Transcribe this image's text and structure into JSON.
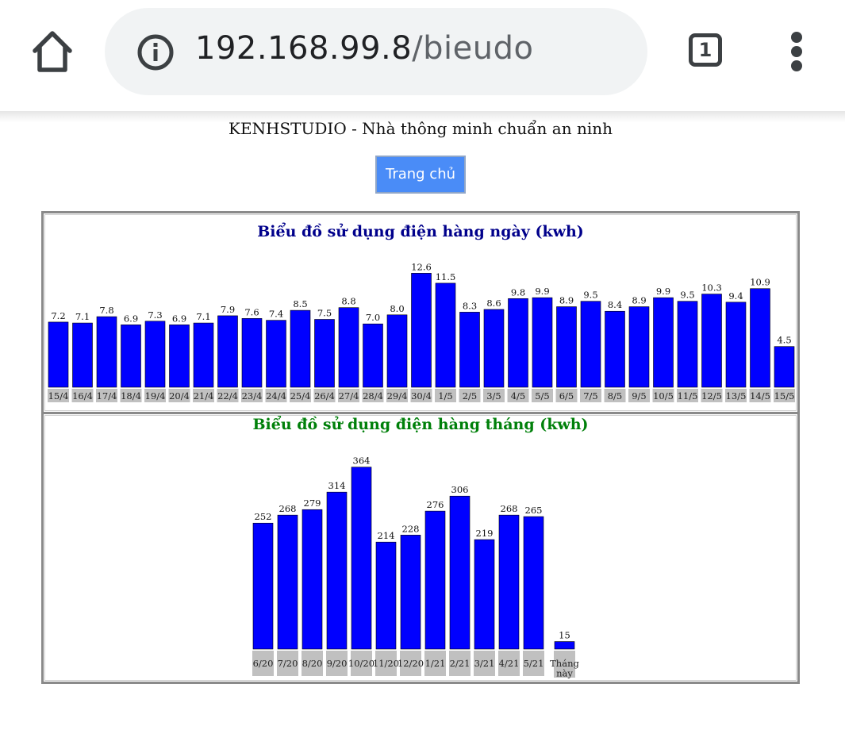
{
  "browser": {
    "url_host": "192.168.99.8",
    "url_path": "/bieudo",
    "tab_count": "1",
    "icons": [
      "home-icon",
      "info-icon",
      "tab-switcher-icon",
      "more-vert-icon"
    ]
  },
  "page": {
    "header": "KENHSTUDIO - Nhà thông minh chuẩn an ninh",
    "home_button": "Trang chủ"
  },
  "colors": {
    "bar": "#0000ff",
    "label_bg": "#c0c0c0",
    "daily_title": "#00008b",
    "monthly_title": "#00800a",
    "button": "#4a8cf7"
  },
  "chart_data": [
    {
      "type": "bar",
      "title": "Biểu đồ sử dụng điện hàng ngày (kwh)",
      "categories": [
        "15/4",
        "16/4",
        "17/4",
        "18/4",
        "19/4",
        "20/4",
        "21/4",
        "22/4",
        "23/4",
        "24/4",
        "25/4",
        "26/4",
        "27/4",
        "28/4",
        "29/4",
        "30/4",
        "1/5",
        "2/5",
        "3/5",
        "4/5",
        "5/5",
        "6/5",
        "7/5",
        "8/5",
        "9/5",
        "10/5",
        "11/5",
        "12/5",
        "13/5",
        "14/5",
        "15/5"
      ],
      "values": [
        7.2,
        7.1,
        7.8,
        6.9,
        7.3,
        6.9,
        7.1,
        7.9,
        7.6,
        7.4,
        8.5,
        7.5,
        8.8,
        7.0,
        8.0,
        12.6,
        11.5,
        8.3,
        8.6,
        9.8,
        9.9,
        8.9,
        9.5,
        8.4,
        8.9,
        9.9,
        9.5,
        10.3,
        9.4,
        10.9,
        4.5
      ],
      "value_labels": [
        "7.2",
        "7.1",
        "7.8",
        "6.9",
        "7.3",
        "6.9",
        "7.1",
        "7.9",
        "7.6",
        "7.4",
        "8.5",
        "7.5",
        "8.8",
        "7.0",
        "8.0",
        "12.6",
        "11.5",
        "8.3",
        "8.6",
        "9.8",
        "9.9",
        "8.9",
        "9.5",
        "8.4",
        "8.9",
        "9.9",
        "9.5",
        "10.3",
        "9.4",
        "10.9",
        "4.5"
      ]
    },
    {
      "type": "bar",
      "title": "Biểu đồ sử dụng điện hàng tháng (kwh)",
      "categories": [
        "6/20",
        "7/20",
        "8/20",
        "9/20",
        "10/20",
        "11/20",
        "12/20",
        "1/21",
        "2/21",
        "3/21",
        "4/21",
        "5/21",
        "Tháng này"
      ],
      "values": [
        252,
        268,
        279,
        314,
        364,
        214,
        228,
        276,
        306,
        219,
        268,
        265,
        15
      ],
      "value_labels": [
        "252",
        "268",
        "279",
        "314",
        "364",
        "214",
        "228",
        "276",
        "306",
        "219",
        "268",
        "265",
        "15"
      ]
    }
  ]
}
